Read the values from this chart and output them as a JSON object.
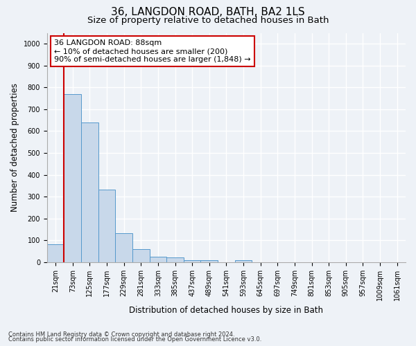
{
  "title": "36, LANGDON ROAD, BATH, BA2 1LS",
  "subtitle": "Size of property relative to detached houses in Bath",
  "xlabel": "Distribution of detached houses by size in Bath",
  "ylabel": "Number of detached properties",
  "footnote1": "Contains HM Land Registry data © Crown copyright and database right 2024.",
  "footnote2": "Contains public sector information licensed under the Open Government Licence v3.0.",
  "bar_labels": [
    "21sqm",
    "73sqm",
    "125sqm",
    "177sqm",
    "229sqm",
    "281sqm",
    "333sqm",
    "385sqm",
    "437sqm",
    "489sqm",
    "541sqm",
    "593sqm",
    "645sqm",
    "697sqm",
    "749sqm",
    "801sqm",
    "853sqm",
    "905sqm",
    "957sqm",
    "1009sqm",
    "1061sqm"
  ],
  "bar_values": [
    83,
    770,
    640,
    333,
    133,
    60,
    25,
    20,
    10,
    9,
    0,
    10,
    0,
    0,
    0,
    0,
    0,
    0,
    0,
    0,
    0
  ],
  "bar_color": "#c8d8ea",
  "bar_edge_color": "#5599cc",
  "vline_color": "#cc0000",
  "vline_x_index": 1,
  "ylim_max": 1050,
  "yticks": [
    0,
    100,
    200,
    300,
    400,
    500,
    600,
    700,
    800,
    900,
    1000
  ],
  "annotation_line1": "36 LANGDON ROAD: 88sqm",
  "annotation_line2": "← 10% of detached houses are smaller (200)",
  "annotation_line3": "90% of semi-detached houses are larger (1,848) →",
  "annotation_box_color": "white",
  "annotation_box_edgecolor": "#cc0000",
  "bg_color": "#eef2f7",
  "grid_color": "white",
  "title_fontsize": 11,
  "subtitle_fontsize": 9.5,
  "label_fontsize": 8.5,
  "tick_fontsize": 7,
  "annotation_fontsize": 8,
  "footnote_fontsize": 6
}
